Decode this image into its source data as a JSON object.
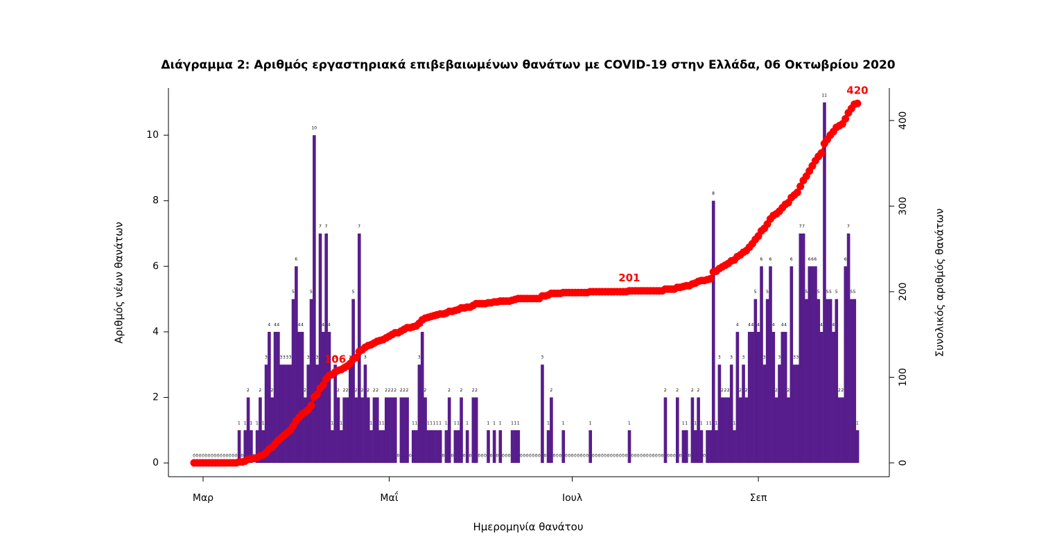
{
  "chart_data": {
    "type": "bar_cumulative",
    "title": "Διάγραμμα 2: Αριθμός εργαστηριακά επιβεβαιωμένων θανάτων με COVID-19 στην Ελλάδα, 06 Οκτωβρίου 2020",
    "xlabel": "Ημερομηνία θανάτου",
    "ylabel": "Αριθμός νέων θανάτων",
    "y2label": "Συνολικός αριθμός θανάτων",
    "categories": [
      null,
      null,
      null,
      "Μαρ",
      null,
      null,
      null,
      null,
      null,
      null,
      null,
      null,
      null,
      null,
      null,
      null,
      null,
      null,
      null,
      null,
      null,
      null,
      null,
      null,
      null,
      null,
      null,
      null,
      null,
      null,
      null,
      null,
      null,
      null,
      null,
      null,
      null,
      null,
      null,
      null,
      null,
      null,
      null,
      null,
      null,
      null,
      null,
      null,
      null,
      null,
      null,
      null,
      null,
      null,
      null,
      null,
      null,
      null,
      null,
      null,
      null,
      null,
      null,
      null,
      null,
      "Μαΐ",
      null,
      null,
      null,
      null,
      null,
      null,
      null,
      null,
      null,
      null,
      null,
      null,
      null,
      null,
      null,
      null,
      null,
      null,
      null,
      null,
      null,
      null,
      null,
      null,
      null,
      null,
      null,
      null,
      null,
      null,
      null,
      null,
      null,
      null,
      null,
      null,
      null,
      null,
      null,
      null,
      null,
      null,
      null,
      null,
      null,
      null,
      null,
      null,
      null,
      null,
      null,
      null,
      null,
      null,
      null,
      null,
      null,
      null,
      null,
      null,
      "Ιουλ",
      null,
      null,
      null,
      null,
      null,
      null,
      null,
      null,
      null,
      null,
      null,
      null,
      null,
      null,
      null,
      null,
      null,
      null,
      null,
      null,
      null,
      null,
      null,
      null,
      null,
      null,
      null,
      null,
      null,
      null,
      null,
      null,
      null,
      null,
      null,
      null,
      null,
      null,
      null,
      null,
      null,
      null,
      null,
      null,
      null,
      null,
      null,
      null,
      null,
      null,
      null,
      null,
      null,
      null,
      null,
      null,
      null,
      null,
      null,
      null,
      null,
      "Σεπ",
      null,
      null,
      null,
      null,
      null,
      null,
      null,
      null,
      null,
      null,
      null,
      null,
      null,
      null,
      null,
      null,
      null,
      null,
      null,
      null,
      null,
      null,
      null,
      null,
      null,
      null,
      null,
      null,
      null,
      null,
      null,
      null,
      null
    ],
    "series": [
      {
        "name": "Αριθμός νέων θανάτων",
        "color": "#571d8c",
        "axis": "y",
        "values": [
          0,
          0,
          0,
          0,
          0,
          0,
          0,
          0,
          0,
          0,
          0,
          0,
          0,
          0,
          0,
          1,
          0,
          1,
          2,
          1,
          0,
          1,
          2,
          1,
          3,
          4,
          2,
          4,
          4,
          3,
          3,
          3,
          3,
          5,
          6,
          4,
          4,
          2,
          3,
          5,
          10,
          3,
          7,
          4,
          7,
          4,
          1,
          3,
          2,
          1,
          2,
          2,
          3,
          5,
          2,
          7,
          2,
          3,
          2,
          1,
          2,
          2,
          1,
          1,
          2,
          2,
          2,
          2,
          0,
          2,
          2,
          2,
          0,
          1,
          1,
          3,
          4,
          2,
          1,
          1,
          1,
          1,
          1,
          0,
          1,
          2,
          0,
          1,
          1,
          2,
          0,
          1,
          0,
          2,
          2,
          0,
          0,
          0,
          1,
          0,
          1,
          0,
          1,
          0,
          0,
          0,
          1,
          1,
          1,
          0,
          0,
          0,
          0,
          0,
          0,
          0,
          3,
          0,
          1,
          2,
          0,
          0,
          0,
          1,
          0,
          0,
          0,
          0,
          0,
          0,
          0,
          0,
          1,
          0,
          0,
          0,
          0,
          0,
          0,
          0,
          0,
          0,
          0,
          0,
          0,
          1,
          0,
          0,
          0,
          0,
          0,
          0,
          0,
          0,
          0,
          0,
          0,
          2,
          0,
          0,
          0,
          2,
          0,
          1,
          1,
          0,
          2,
          1,
          2,
          1,
          0,
          1,
          1,
          8,
          1,
          3,
          2,
          2,
          2,
          3,
          1,
          4,
          2,
          3,
          2,
          4,
          4,
          5,
          4,
          6,
          3,
          5,
          6,
          4,
          2,
          3,
          4,
          4,
          2,
          6,
          3,
          3,
          7,
          7,
          5,
          6,
          6,
          6,
          5,
          4,
          11,
          5,
          5,
          4,
          5,
          2,
          2,
          6,
          7,
          5,
          5,
          1
        ]
      },
      {
        "name": "Συνολικός αριθμός θανάτων",
        "color": "#ff0000",
        "axis": "y2",
        "labeled_points": [
          47,
          145,
          221
        ],
        "values": [
          0,
          0,
          0,
          0,
          0,
          0,
          0,
          0,
          0,
          0,
          0,
          0,
          0,
          0,
          0,
          1,
          1,
          2,
          4,
          5,
          5,
          6,
          8,
          9,
          12,
          16,
          18,
          22,
          26,
          29,
          32,
          35,
          38,
          43,
          49,
          53,
          57,
          59,
          62,
          67,
          77,
          80,
          87,
          91,
          98,
          102,
          103,
          106,
          108,
          109,
          111,
          113,
          116,
          121,
          123,
          130,
          132,
          135,
          137,
          138,
          140,
          142,
          143,
          144,
          146,
          148,
          150,
          152,
          152,
          154,
          156,
          158,
          158,
          159,
          160,
          163,
          167,
          169,
          170,
          171,
          172,
          173,
          174,
          174,
          175,
          177,
          177,
          178,
          179,
          181,
          181,
          182,
          182,
          184,
          186,
          186,
          186,
          186,
          187,
          187,
          188,
          188,
          189,
          189,
          189,
          189,
          190,
          191,
          192,
          192,
          192,
          192,
          192,
          192,
          192,
          192,
          195,
          195,
          196,
          198,
          198,
          198,
          198,
          199,
          199,
          199,
          199,
          199,
          199,
          199,
          199,
          199,
          200,
          200,
          200,
          200,
          200,
          200,
          200,
          200,
          200,
          200,
          200,
          200,
          200,
          201,
          201,
          201,
          201,
          201,
          201,
          201,
          201,
          201,
          201,
          201,
          201,
          203,
          203,
          203,
          203,
          205,
          205,
          206,
          207,
          207,
          209,
          210,
          212,
          213,
          213,
          214,
          215,
          223,
          224,
          227,
          229,
          231,
          233,
          236,
          237,
          241,
          243,
          246,
          248,
          252,
          256,
          261,
          265,
          271,
          274,
          279,
          285,
          289,
          291,
          294,
          298,
          302,
          304,
          310,
          313,
          316,
          323,
          330,
          335,
          341,
          347,
          353,
          358,
          362,
          373,
          378,
          383,
          387,
          392,
          394,
          396,
          402,
          409,
          414,
          419,
          420
        ]
      }
    ],
    "ylim": [
      -0.42,
      11.44
    ],
    "yticks": [
      0,
      2,
      4,
      6,
      8,
      10
    ],
    "y2lim": [
      -16.2,
      438
    ],
    "y2ticks": [
      0,
      100,
      200,
      300,
      400
    ]
  }
}
